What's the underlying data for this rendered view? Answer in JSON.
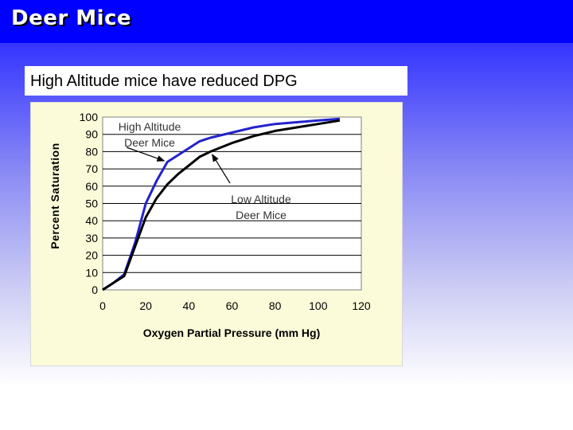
{
  "slide": {
    "title": "Deer Mice",
    "subtitle": "High Altitude mice have reduced DPG"
  },
  "colors": {
    "title_bar": "#0000ff",
    "plot_background": "#fbfbd9",
    "high_altitude_line": "#2222cc",
    "low_altitude_line": "#000000"
  },
  "chart_data": {
    "type": "line",
    "xlabel": "Oxygen Partial Pressure (mm Hg)",
    "ylabel": "Percent Saturation",
    "xlim": [
      0,
      120
    ],
    "ylim": [
      0,
      100
    ],
    "xticks": [
      0,
      20,
      40,
      60,
      80,
      100,
      120
    ],
    "yticks": [
      0,
      10,
      20,
      30,
      40,
      50,
      60,
      70,
      80,
      90,
      100
    ],
    "grid": "horizontal",
    "series": [
      {
        "name": "High Altitude Deer Mice",
        "color": "#2222cc",
        "x": [
          0,
          5,
          10,
          15,
          20,
          25,
          30,
          35,
          40,
          45,
          50,
          60,
          70,
          80,
          90,
          100,
          110
        ],
        "y": [
          0,
          4,
          9,
          27,
          50,
          63,
          74,
          78,
          82,
          86,
          88,
          91,
          94,
          96,
          97,
          98,
          99
        ]
      },
      {
        "name": "Low Altitude Deer Mice",
        "color": "#000000",
        "x": [
          0,
          5,
          10,
          15,
          20,
          25,
          30,
          35,
          40,
          45,
          50,
          60,
          70,
          80,
          90,
          100,
          110
        ],
        "y": [
          0,
          4,
          8,
          25,
          42,
          53,
          61,
          67,
          72,
          77,
          80,
          85,
          89,
          92,
          94,
          96,
          98
        ]
      }
    ],
    "annotations": [
      {
        "text_lines": [
          "High Altitude",
          "Deer Mice"
        ],
        "target_series": 0,
        "target_x": 30
      },
      {
        "text_lines": [
          "Low Altitude",
          "Deer Mice"
        ],
        "target_series": 1,
        "target_x": 50
      }
    ]
  }
}
